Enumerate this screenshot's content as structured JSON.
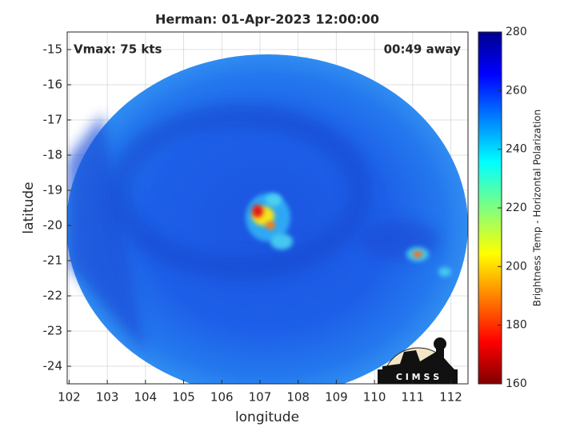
{
  "title": "Herman: 01-Apr-2023 12:00:00",
  "annotations": {
    "vmax": "Vmax: 75 kts",
    "time_away": "00:49 away"
  },
  "x_axis": {
    "label": "longitude",
    "lim": [
      101.95,
      112.45
    ],
    "ticks": [
      102,
      103,
      104,
      105,
      106,
      107,
      108,
      109,
      110,
      111,
      112
    ]
  },
  "y_axis": {
    "label": "latitude",
    "lim": [
      -24.5,
      -14.5
    ],
    "ticks": [
      -24,
      -23,
      -22,
      -21,
      -20,
      -19,
      -18,
      -17,
      -16,
      -15
    ]
  },
  "colorbar": {
    "label": "Brightness Temp - Horizontal Polarization",
    "lim": [
      160,
      280
    ],
    "ticks": [
      160,
      180,
      200,
      220,
      240,
      260,
      280
    ]
  },
  "logo": "C I M S S"
}
